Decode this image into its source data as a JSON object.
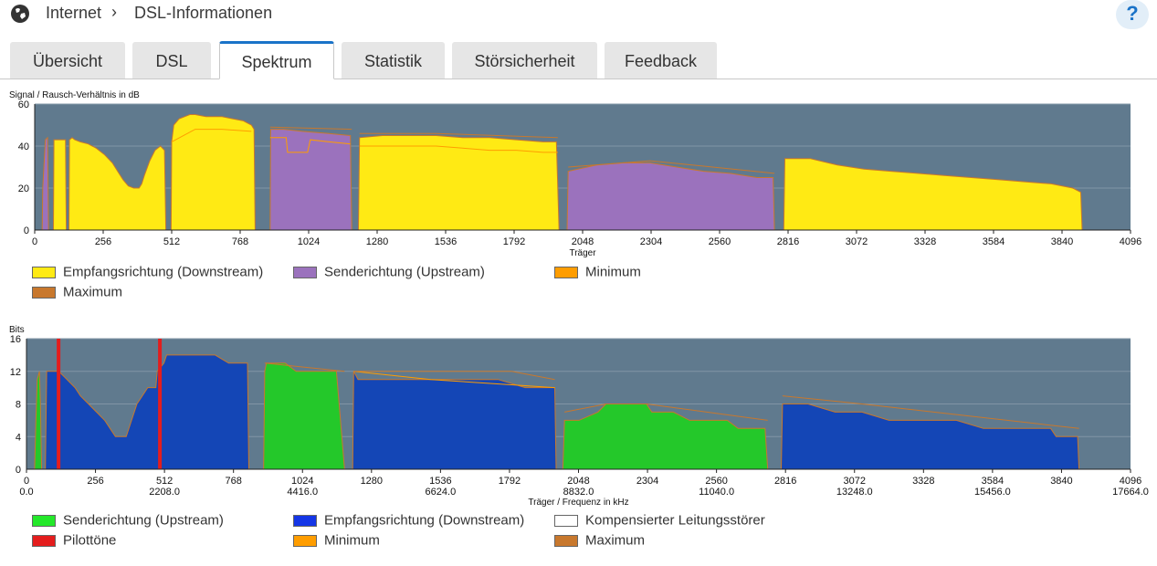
{
  "breadcrumb": {
    "section": "Internet",
    "page": "DSL-Informationen"
  },
  "help_label": "?",
  "tabs": [
    {
      "label": "Übersicht",
      "active": false
    },
    {
      "label": "DSL",
      "active": false
    },
    {
      "label": "Spektrum",
      "active": true
    },
    {
      "label": "Statistik",
      "active": false
    },
    {
      "label": "Störsicherheit",
      "active": false
    },
    {
      "label": "Feedback",
      "active": false
    }
  ],
  "colors": {
    "plot_bg": "#607a8e",
    "downstream1": "#ffea14",
    "upstream1": "#9b72bd",
    "downstream2": "#1446b6",
    "upstream2": "#24c82a",
    "minimum": "#ff9d00",
    "maximum": "#c8782d",
    "pilot": "#e41d1d"
  },
  "chart_data": [
    {
      "type": "area",
      "title": "Signal / Rausch-Verhältnis in dB",
      "xlabel": "Träger",
      "ylabel": "Signal / Rausch-Verhältnis in dB",
      "xlim": [
        0,
        4096
      ],
      "ylim": [
        0,
        60
      ],
      "xticks": [
        "0",
        "256",
        "512",
        "768",
        "1024",
        "1280",
        "1536",
        "1792",
        "2048",
        "2304",
        "2560",
        "2816",
        "3072",
        "3328",
        "3584",
        "3840",
        "4096"
      ],
      "yticks": [
        "0",
        "20",
        "40",
        "60"
      ],
      "legend": [
        "Empfangsrichtung (Downstream)",
        "Senderichtung (Upstream)",
        "Minimum",
        "Maximum"
      ],
      "series": [
        {
          "name": "Empfangsrichtung (Downstream)",
          "segments": [
            [
              [
                70,
                0
              ],
              [
                72,
                43
              ],
              [
                115,
                43
              ],
              [
                118,
                0
              ]
            ],
            [
              [
                128,
                0
              ],
              [
                130,
                43
              ],
              [
                140,
                44
              ],
              [
                150,
                43
              ],
              [
                170,
                42
              ],
              [
                200,
                41
              ],
              [
                230,
                39
              ],
              [
                260,
                36
              ],
              [
                290,
                32
              ],
              [
                310,
                28
              ],
              [
                330,
                24
              ],
              [
                350,
                21
              ],
              [
                370,
                20
              ],
              [
                390,
                20
              ],
              [
                400,
                22
              ],
              [
                410,
                26
              ],
              [
                430,
                33
              ],
              [
                450,
                38
              ],
              [
                470,
                40
              ],
              [
                485,
                38
              ],
              [
                490,
                0
              ]
            ],
            [
              [
                510,
                0
              ],
              [
                512,
                42
              ],
              [
                520,
                50
              ],
              [
                540,
                53
              ],
              [
                560,
                54
              ],
              [
                580,
                55
              ],
              [
                600,
                55
              ],
              [
                640,
                54
              ],
              [
                700,
                54
              ],
              [
                740,
                53
              ],
              [
                780,
                52
              ],
              [
                810,
                50
              ],
              [
                820,
                48
              ],
              [
                824,
                0
              ]
            ],
            [
              [
                1210,
                0
              ],
              [
                1214,
                44
              ],
              [
                1300,
                45
              ],
              [
                1400,
                45
              ],
              [
                1500,
                45
              ],
              [
                1600,
                44
              ],
              [
                1700,
                44
              ],
              [
                1800,
                43
              ],
              [
                1900,
                42
              ],
              [
                1950,
                42
              ],
              [
                1960,
                0
              ]
            ],
            [
              [
                2800,
                0
              ],
              [
                2804,
                34
              ],
              [
                2900,
                34
              ],
              [
                3000,
                31
              ],
              [
                3100,
                29
              ],
              [
                3200,
                28
              ],
              [
                3300,
                27
              ],
              [
                3400,
                26
              ],
              [
                3500,
                25
              ],
              [
                3600,
                24
              ],
              [
                3700,
                23
              ],
              [
                3800,
                22
              ],
              [
                3880,
                20
              ],
              [
                3910,
                18
              ],
              [
                3915,
                0
              ]
            ]
          ]
        },
        {
          "name": "Senderichtung (Upstream)",
          "segments": [
            [
              [
                28,
                0
              ],
              [
                30,
                20
              ],
              [
                40,
                43
              ],
              [
                48,
                44
              ],
              [
                52,
                0
              ]
            ],
            [
              [
                880,
                0
              ],
              [
                882,
                48
              ],
              [
                930,
                48
              ],
              [
                1000,
                47
              ],
              [
                1100,
                46
              ],
              [
                1180,
                45
              ],
              [
                1185,
                0
              ]
            ],
            [
              [
                1990,
                0
              ],
              [
                1994,
                28
              ],
              [
                2100,
                31
              ],
              [
                2200,
                32
              ],
              [
                2300,
                32
              ],
              [
                2400,
                30
              ],
              [
                2500,
                28
              ],
              [
                2600,
                27
              ],
              [
                2700,
                25
              ],
              [
                2760,
                25
              ],
              [
                2765,
                0
              ]
            ]
          ]
        },
        {
          "name": "Minimum",
          "segments": [
            [
              [
                880,
                44
              ],
              [
                940,
                44
              ],
              [
                945,
                37
              ],
              [
                1020,
                37
              ],
              [
                1030,
                43
              ],
              [
                1100,
                42
              ],
              [
                1180,
                41
              ]
            ],
            [
              [
                1214,
                40
              ],
              [
                1400,
                40
              ],
              [
                1500,
                40
              ],
              [
                1600,
                39
              ],
              [
                1700,
                38
              ],
              [
                1800,
                38
              ],
              [
                1900,
                37
              ],
              [
                1955,
                37
              ]
            ],
            [
              [
                512,
                42
              ],
              [
                600,
                48
              ],
              [
                700,
                48
              ],
              [
                810,
                47
              ]
            ]
          ]
        },
        {
          "name": "Maximum",
          "segments": [
            [
              [
                880,
                49
              ],
              [
                1185,
                48
              ]
            ],
            [
              [
                1214,
                46
              ],
              [
                1500,
                46
              ],
              [
                1955,
                44
              ]
            ],
            [
              [
                1994,
                30
              ],
              [
                2300,
                33
              ],
              [
                2765,
                27
              ]
            ]
          ]
        }
      ]
    },
    {
      "type": "area",
      "title": "Bits",
      "xlabel": "Träger / Frequenz in kHz",
      "ylabel": "Bits",
      "xlim": [
        0,
        4096
      ],
      "ylim": [
        0,
        16
      ],
      "xticks": [
        "0",
        "256",
        "512",
        "768",
        "1024",
        "1280",
        "1536",
        "1792",
        "2048",
        "2304",
        "2560",
        "2816",
        "3072",
        "3328",
        "3584",
        "3840",
        "4096"
      ],
      "xticks_khz": [
        "0.0",
        "2208.0",
        "4416.0",
        "6624.0",
        "8832.0",
        "11040.0",
        "13248.0",
        "15456.0",
        "17664.0"
      ],
      "yticks": [
        "0",
        "4",
        "8",
        "12",
        "16"
      ],
      "legend": [
        "Senderichtung (Upstream)",
        "Empfangsrichtung (Downstream)",
        "Kompensierter Leitungsstörer",
        "Pilottöne",
        "Minimum",
        "Maximum"
      ],
      "pilot_tones": [
        119,
        495
      ],
      "series": [
        {
          "name": "Senderichtung (Upstream)",
          "segments": [
            [
              [
                30,
                0
              ],
              [
                35,
                6
              ],
              [
                40,
                11
              ],
              [
                48,
                12
              ],
              [
                52,
                8
              ],
              [
                56,
                0
              ]
            ],
            [
              [
                880,
                0
              ],
              [
                884,
                12
              ],
              [
                890,
                13
              ],
              [
                960,
                13
              ],
              [
                1000,
                12
              ],
              [
                1100,
                12
              ],
              [
                1150,
                12
              ],
              [
                1180,
                0
              ]
            ],
            [
              [
                1990,
                0
              ],
              [
                1996,
                6
              ],
              [
                2050,
                6
              ],
              [
                2120,
                7
              ],
              [
                2150,
                8
              ],
              [
                2300,
                8
              ],
              [
                2320,
                7
              ],
              [
                2400,
                7
              ],
              [
                2460,
                6
              ],
              [
                2600,
                6
              ],
              [
                2640,
                5
              ],
              [
                2740,
                5
              ],
              [
                2750,
                0
              ]
            ]
          ]
        },
        {
          "name": "Empfangsrichtung (Downstream)",
          "segments": [
            [
              [
                70,
                0
              ],
              [
                75,
                12
              ],
              [
                120,
                12
              ],
              [
                150,
                11
              ],
              [
                180,
                10
              ],
              [
                200,
                9
              ],
              [
                230,
                8
              ],
              [
                260,
                7
              ],
              [
                290,
                6
              ],
              [
                310,
                5
              ],
              [
                330,
                4
              ],
              [
                370,
                4
              ],
              [
                390,
                6
              ],
              [
                410,
                8
              ],
              [
                430,
                9
              ],
              [
                450,
                10
              ],
              [
                480,
                10
              ],
              [
                485,
                12
              ],
              [
                510,
                13
              ],
              [
                520,
                14
              ],
              [
                600,
                14
              ],
              [
                700,
                14
              ],
              [
                750,
                13
              ],
              [
                820,
                13
              ],
              [
                825,
                0
              ]
            ],
            [
              [
                1210,
                0
              ],
              [
                1214,
                12
              ],
              [
                1230,
                11
              ],
              [
                1300,
                11
              ],
              [
                1400,
                11
              ],
              [
                1500,
                11
              ],
              [
                1650,
                11
              ],
              [
                1750,
                11
              ],
              [
                1850,
                10
              ],
              [
                1960,
                10
              ],
              [
                1965,
                0
              ]
            ],
            [
              [
                2800,
                0
              ],
              [
                2805,
                8
              ],
              [
                2900,
                8
              ],
              [
                3000,
                7
              ],
              [
                3100,
                7
              ],
              [
                3200,
                6
              ],
              [
                3300,
                6
              ],
              [
                3450,
                6
              ],
              [
                3550,
                5
              ],
              [
                3700,
                5
              ],
              [
                3800,
                5
              ],
              [
                3820,
                4
              ],
              [
                3900,
                4
              ],
              [
                3905,
                0
              ]
            ]
          ]
        },
        {
          "name": "Minimum",
          "segments": [
            [
              [
                1214,
                12
              ],
              [
                1500,
                11
              ],
              [
                1960,
                10
              ]
            ]
          ]
        },
        {
          "name": "Maximum",
          "segments": [
            [
              [
                884,
                13
              ],
              [
                1180,
                12
              ]
            ],
            [
              [
                1214,
                12
              ],
              [
                1300,
                12
              ],
              [
                1450,
                12
              ],
              [
                1600,
                12
              ],
              [
                1800,
                12
              ],
              [
                1960,
                11
              ]
            ],
            [
              [
                1996,
                7
              ],
              [
                2150,
                8
              ],
              [
                2300,
                8
              ],
              [
                2750,
                6
              ]
            ],
            [
              [
                2805,
                9
              ],
              [
                3100,
                8
              ],
              [
                3905,
                5
              ]
            ]
          ]
        }
      ]
    }
  ]
}
